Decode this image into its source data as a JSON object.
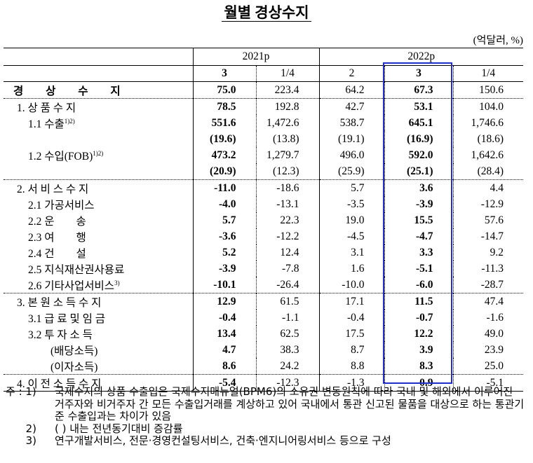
{
  "title": "월별 경상수지",
  "unit": "(억달러, %)",
  "years": [
    "2021p",
    "2022p"
  ],
  "periods": [
    "3",
    "1/4",
    "2",
    "3",
    "1/4"
  ],
  "rows": [
    {
      "label": "경 상 수 지",
      "values": [
        "75.0",
        "223.4",
        "64.2",
        "67.3",
        "150.6"
      ]
    },
    {
      "label": "1. 상 품 수 지",
      "values": [
        "78.5",
        "192.8",
        "42.7",
        "53.1",
        "104.0"
      ]
    },
    {
      "label": "1.1 수출",
      "sup": "1)2)",
      "values": [
        "551.6",
        "1,472.6",
        "538.7",
        "645.1",
        "1,746.6"
      ]
    },
    {
      "label": "",
      "values": [
        "(19.6)",
        "(13.8)",
        "(19.1)",
        "(16.9)",
        "(18.6)"
      ]
    },
    {
      "label": "1.2 수입(FOB)",
      "sup": "1)2)",
      "values": [
        "473.2",
        "1,279.7",
        "496.0",
        "592.0",
        "1,642.6"
      ]
    },
    {
      "label": "",
      "values": [
        "(20.9)",
        "(12.3)",
        "(25.9)",
        "(25.1)",
        "(28.4)"
      ]
    },
    {
      "label": "2. 서 비 스 수 지",
      "values": [
        "-11.0",
        "-18.6",
        "5.7",
        "3.6",
        "4.4"
      ]
    },
    {
      "label": "2.1 가공서비스",
      "values": [
        "-4.0",
        "-13.1",
        "-3.5",
        "-3.9",
        "-12.9"
      ]
    },
    {
      "label": "2.2 운　　송",
      "values": [
        "5.7",
        "22.3",
        "19.0",
        "15.5",
        "57.6"
      ]
    },
    {
      "label": "2.3 여　　행",
      "values": [
        "-3.6",
        "-12.2",
        "-4.5",
        "-4.7",
        "-14.7"
      ]
    },
    {
      "label": "2.4 건　　설",
      "values": [
        "5.2",
        "12.4",
        "3.1",
        "3.3",
        "9.2"
      ]
    },
    {
      "label": "2.5 지식재산권사용료",
      "values": [
        "-3.9",
        "-7.8",
        "1.6",
        "-5.1",
        "-11.3"
      ]
    },
    {
      "label": "2.6 기타사업서비스",
      "sup": "3)",
      "values": [
        "-10.1",
        "-26.4",
        "-10.0",
        "-6.0",
        "-28.7"
      ]
    },
    {
      "label": "3. 본 원 소 득 수 지",
      "values": [
        "12.9",
        "61.5",
        "17.1",
        "11.5",
        "47.4"
      ]
    },
    {
      "label": "3.1 급 료 및 임 금",
      "values": [
        "-0.4",
        "-1.1",
        "-0.4",
        "-0.7",
        "-1.6"
      ]
    },
    {
      "label": "3.2 투 자 소 득",
      "values": [
        "13.4",
        "62.5",
        "17.5",
        "12.2",
        "49.0"
      ]
    },
    {
      "label": "(배당소득)",
      "values": [
        "4.7",
        "38.3",
        "8.7",
        "3.9",
        "23.9"
      ]
    },
    {
      "label": "(이자소득)",
      "values": [
        "8.6",
        "24.2",
        "8.8",
        "8.3",
        "25.0"
      ]
    },
    {
      "label": "4. 이 전 소 득 수 지",
      "values": [
        "-5.4",
        "-12.3",
        "-1.3",
        "-0.9",
        "-5.1"
      ]
    }
  ],
  "notes": [
    {
      "key": "주 : 1)",
      "text": "국제수지의 상품 수출입은 국제수지매뉴얼(BPM6)의 소유권 변동원칙에 따라 국내 및 해외에서 이루어진 거주자와 비거주자 간 모든 수출입거래를 계상하고 있어 국내에서 통관 신고된 물품을 대상으로 하는 통관기준 수출입과는 차이가 있음"
    },
    {
      "key": "      2)",
      "text": "(  ) 내는 전년동기대비 증감률"
    },
    {
      "key": "      3)",
      "text": "연구개발서비스, 전문·경영컨설팅서비스, 건축·엔지니어링서비스 등으로 구성"
    }
  ]
}
